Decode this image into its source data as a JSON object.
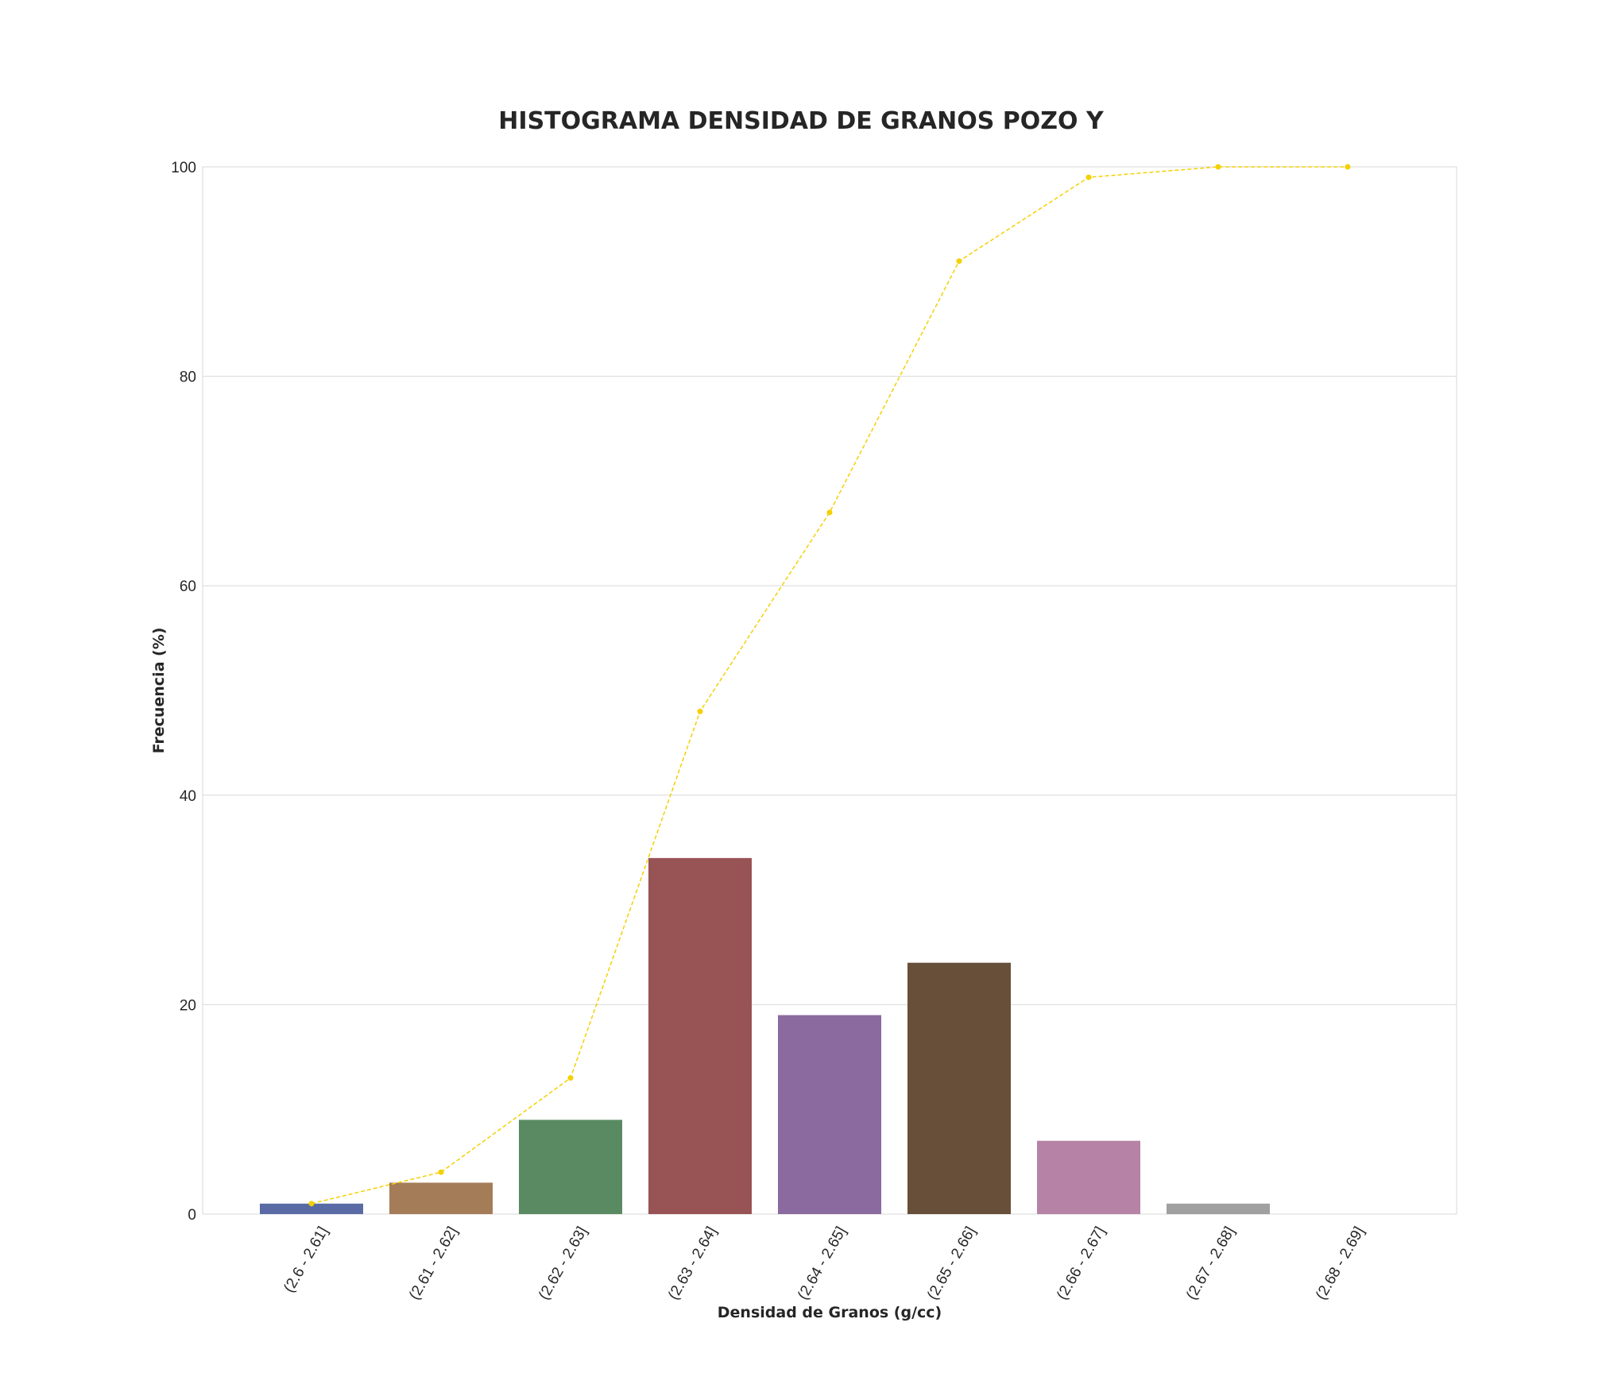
{
  "chart_data": {
    "type": "bar",
    "title": "HISTOGRAMA DENSIDAD DE GRANOS POZO Y",
    "xlabel": "Densidad de Granos (g/cc)",
    "ylabel": "Frecuencia (%)",
    "ylim": [
      0,
      100
    ],
    "yticks": [
      0,
      20,
      40,
      60,
      80,
      100
    ],
    "grid": true,
    "categories": [
      "(2.6 - 2.61]",
      "(2.61 - 2.62]",
      "(2.62 - 2.63]",
      "(2.63 - 2.64]",
      "(2.64 - 2.65]",
      "(2.65 - 2.66]",
      "(2.66 - 2.67]",
      "(2.67 - 2.68]",
      "(2.68 - 2.69]"
    ],
    "series": [
      {
        "kind": "bar",
        "values": [
          1,
          3,
          9,
          34,
          19,
          24,
          7,
          1,
          0
        ],
        "colors": [
          "#5a6aa5",
          "#a47d58",
          "#5a8a62",
          "#985355",
          "#8b6aa0",
          "#674f39",
          "#b683a6",
          "#a0a0a0",
          "#c0c0c0"
        ]
      },
      {
        "kind": "line",
        "style": "dashed",
        "color": "#f5d000",
        "values": [
          1,
          4,
          13,
          48,
          67,
          91,
          99,
          100,
          100
        ]
      }
    ]
  }
}
